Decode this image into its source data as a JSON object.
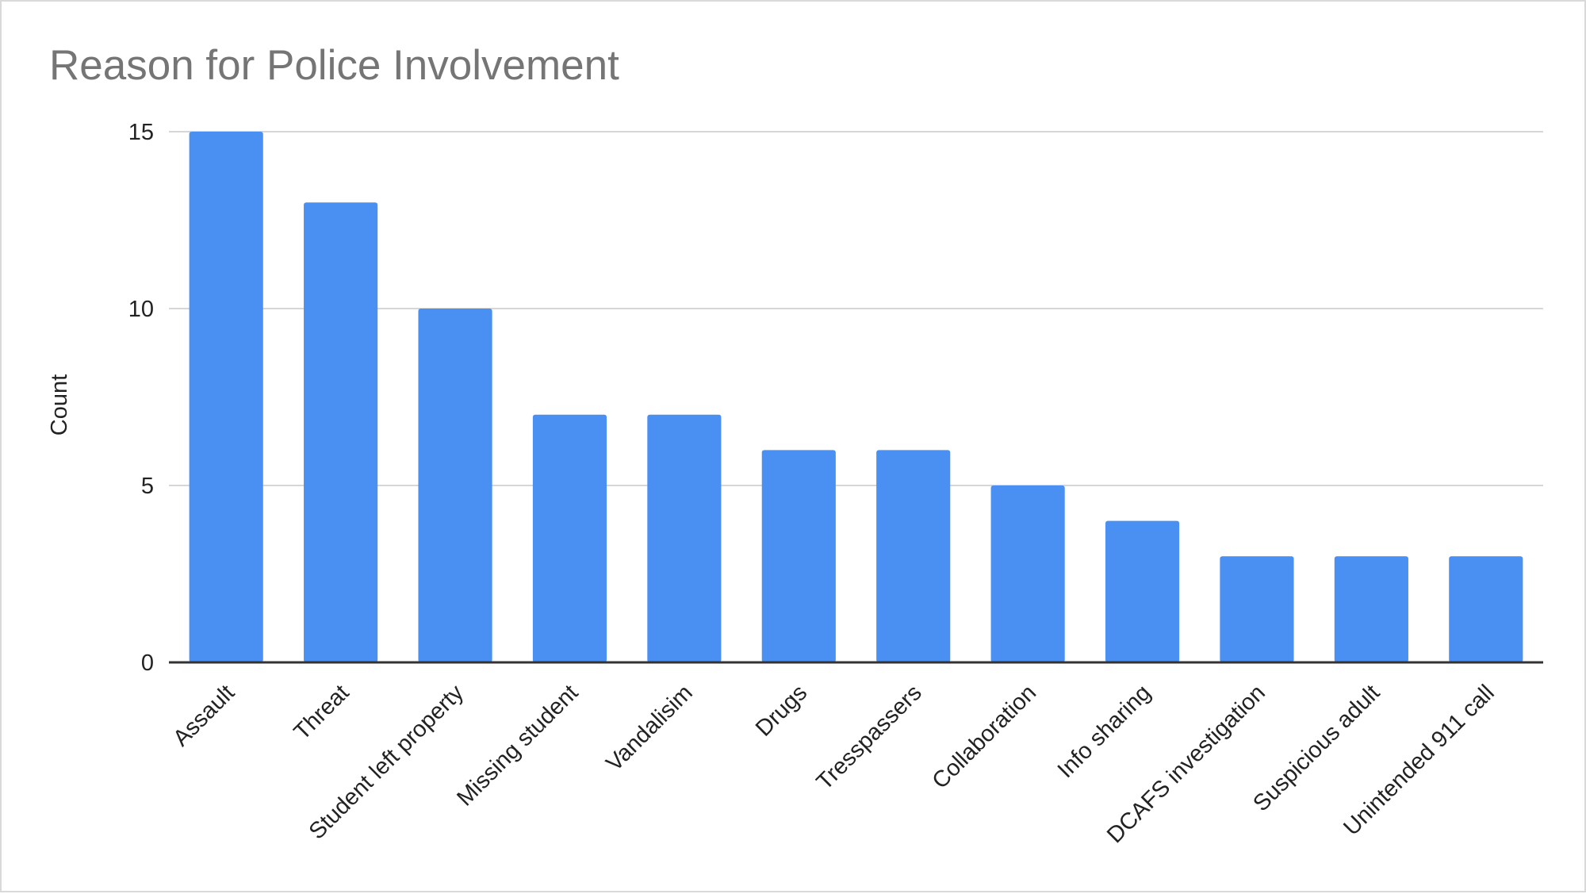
{
  "chart_data": {
    "type": "bar",
    "title": "Reason for Police Involvement",
    "xlabel": "",
    "ylabel": "Count",
    "ylim": [
      0,
      15
    ],
    "yticks": [
      "0",
      "5",
      "10",
      "15"
    ],
    "grid": true,
    "legend": "none",
    "bar_color": "#4a90f2",
    "categories": [
      "Assault",
      "Threat",
      "Student left property",
      "Missing student",
      "Vandalisim",
      "Drugs",
      "Tresspassers",
      "Collaboration",
      "Info sharing",
      "DCAFS investigation",
      "Suspicious adult",
      "Unintended 911 call"
    ],
    "values": [
      15,
      13,
      10,
      7,
      7,
      6,
      6,
      5,
      4,
      3,
      3,
      3
    ]
  }
}
